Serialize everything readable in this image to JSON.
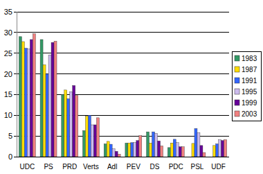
{
  "chart_data": {
    "type": "bar",
    "categories": [
      "UDC",
      "PS",
      "PRD",
      "Verts",
      "Adl",
      "PEV",
      "DS",
      "PDC",
      "PSL",
      "UDF"
    ],
    "series": [
      {
        "name": "1983",
        "color": "#339966",
        "values": [
          29.0,
          28.3,
          15.0,
          6.3,
          3.1,
          3.3,
          6.0,
          2.2,
          null,
          null
        ]
      },
      {
        "name": "1987",
        "color": "#ffdd00",
        "values": [
          27.8,
          22.2,
          16.1,
          9.8,
          3.7,
          3.3,
          3.3,
          3.3,
          3.2,
          2.7
        ]
      },
      {
        "name": "1991",
        "color": "#3366ff",
        "values": [
          26.2,
          20.0,
          14.0,
          10.0,
          3.0,
          3.4,
          6.0,
          4.2,
          6.8,
          3.1
        ]
      },
      {
        "name": "1995",
        "color": "#ccbbee",
        "values": [
          26.0,
          24.6,
          15.7,
          7.7,
          1.9,
          3.4,
          5.6,
          3.4,
          5.8,
          4.1
        ]
      },
      {
        "name": "1999",
        "color": "#660099",
        "values": [
          28.3,
          27.6,
          17.2,
          7.7,
          1.3,
          3.9,
          3.8,
          2.4,
          2.7,
          3.9
        ]
      },
      {
        "name": "2003",
        "color": "#f08080",
        "values": [
          29.7,
          27.9,
          14.8,
          9.4,
          0.6,
          5.1,
          2.6,
          2.4,
          1.0,
          4.1
        ]
      }
    ],
    "ylim": [
      0,
      35
    ],
    "yticks": [
      0,
      5,
      10,
      15,
      20,
      25,
      30,
      35
    ],
    "grid": true,
    "legend": "right"
  }
}
